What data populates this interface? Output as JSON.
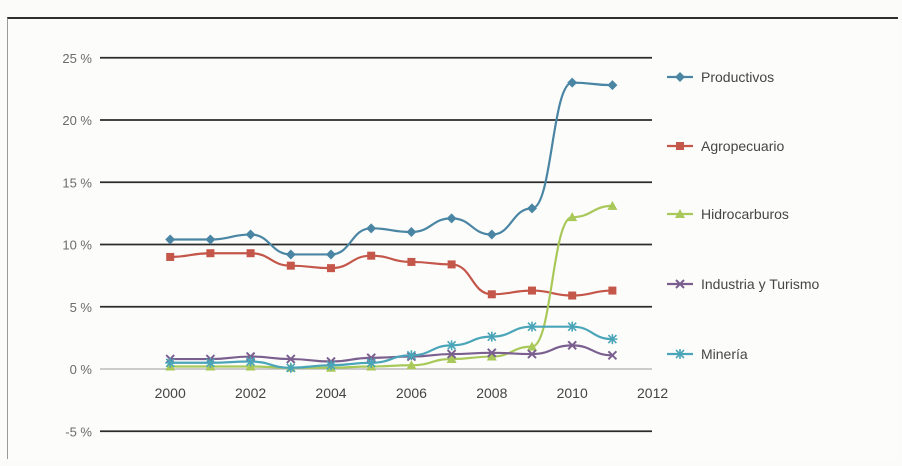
{
  "chart_data": {
    "type": "line",
    "title": "",
    "xlabel": "",
    "ylabel": "",
    "x": [
      2000,
      2001,
      2002,
      2003,
      2004,
      2005,
      2006,
      2007,
      2008,
      2009,
      2010,
      2011
    ],
    "x_ticks": [
      2000,
      2002,
      2004,
      2006,
      2008,
      2010,
      2012
    ],
    "x_tick_labels": [
      "2000",
      "2002",
      "2004",
      "2006",
      "2008",
      "2010",
      "2012"
    ],
    "y_ticks": [
      -5,
      0,
      5,
      10,
      15,
      20,
      25
    ],
    "y_tick_labels": [
      "-5 %",
      "0 %",
      "5 %",
      "10 %",
      "15 %",
      "20 %",
      "25 %"
    ],
    "xlim": [
      1999,
      2012
    ],
    "ylim": [
      -5,
      25
    ],
    "grid": "horizontal",
    "legend_position": "right",
    "series": [
      {
        "name": "Productivos",
        "color": "#4a86a4",
        "marker": "diamond",
        "values": [
          10.4,
          10.4,
          10.8,
          9.2,
          9.2,
          11.3,
          11.0,
          12.1,
          10.8,
          12.9,
          23.0,
          22.8
        ]
      },
      {
        "name": "Agropecuario",
        "color": "#c4574a",
        "marker": "square",
        "values": [
          9.0,
          9.3,
          9.3,
          8.3,
          8.1,
          9.1,
          8.6,
          8.4,
          6.0,
          6.3,
          5.9,
          6.3
        ]
      },
      {
        "name": "Hidrocarburos",
        "color": "#a9c85a",
        "marker": "triangle",
        "values": [
          0.2,
          0.2,
          0.2,
          0.1,
          0.1,
          0.2,
          0.3,
          0.8,
          1.0,
          1.8,
          12.2,
          13.1
        ]
      },
      {
        "name": "Industria y Turismo",
        "color": "#7a5f8f",
        "marker": "x",
        "values": [
          0.8,
          0.8,
          1.0,
          0.8,
          0.6,
          0.9,
          1.0,
          1.2,
          1.3,
          1.2,
          1.9,
          1.1
        ]
      },
      {
        "name": "Minería",
        "color": "#4aa5b8",
        "marker": "star",
        "values": [
          0.5,
          0.5,
          0.6,
          0.1,
          0.3,
          0.5,
          1.1,
          1.9,
          2.6,
          3.4,
          3.4,
          2.4
        ]
      }
    ]
  }
}
